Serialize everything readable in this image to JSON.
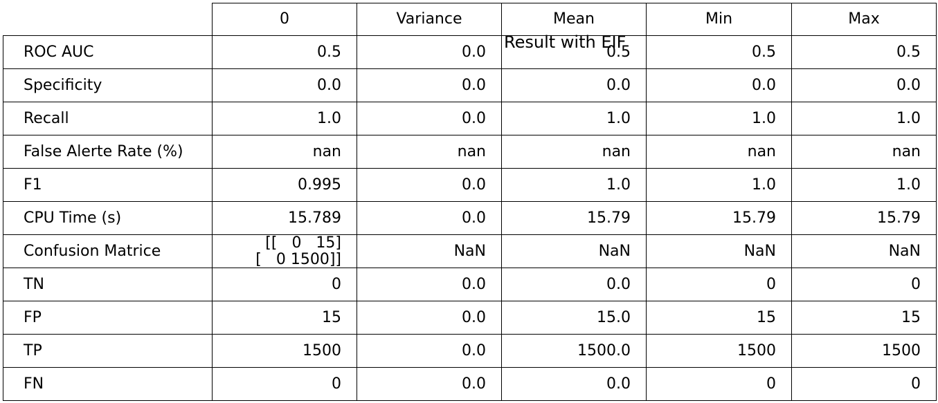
{
  "chart_data": {
    "type": "table",
    "title": "Result with EIF",
    "columns": [
      "0",
      "Variance",
      "Mean",
      "Min",
      "Max"
    ],
    "rows": [
      {
        "label": "ROC AUC",
        "values": [
          "0.5",
          "0.0",
          "0.5",
          "0.5",
          "0.5"
        ]
      },
      {
        "label": "Specificity",
        "values": [
          "0.0",
          "0.0",
          "0.0",
          "0.0",
          "0.0"
        ]
      },
      {
        "label": "Recall",
        "values": [
          "1.0",
          "0.0",
          "1.0",
          "1.0",
          "1.0"
        ]
      },
      {
        "label": "False Alerte Rate (%)",
        "values": [
          "nan",
          "nan",
          "nan",
          "nan",
          "nan"
        ]
      },
      {
        "label": "F1",
        "values": [
          "0.995",
          "0.0",
          "1.0",
          "1.0",
          "1.0"
        ]
      },
      {
        "label": "CPU Time (s)",
        "values": [
          "15.789",
          "0.0",
          "15.79",
          "15.79",
          "15.79"
        ]
      },
      {
        "label": "Confusion Matrice",
        "values": [
          "[[   0   15]\n [   0 1500]]",
          "NaN",
          "NaN",
          "NaN",
          "NaN"
        ]
      },
      {
        "label": "TN",
        "values": [
          "0",
          "0.0",
          "0.0",
          "0",
          "0"
        ]
      },
      {
        "label": "FP",
        "values": [
          "15",
          "0.0",
          "15.0",
          "15",
          "15"
        ]
      },
      {
        "label": "TP",
        "values": [
          "1500",
          "0.0",
          "1500.0",
          "1500",
          "1500"
        ]
      },
      {
        "label": "FN",
        "values": [
          "0",
          "0.0",
          "0.0",
          "0",
          "0"
        ]
      }
    ]
  }
}
